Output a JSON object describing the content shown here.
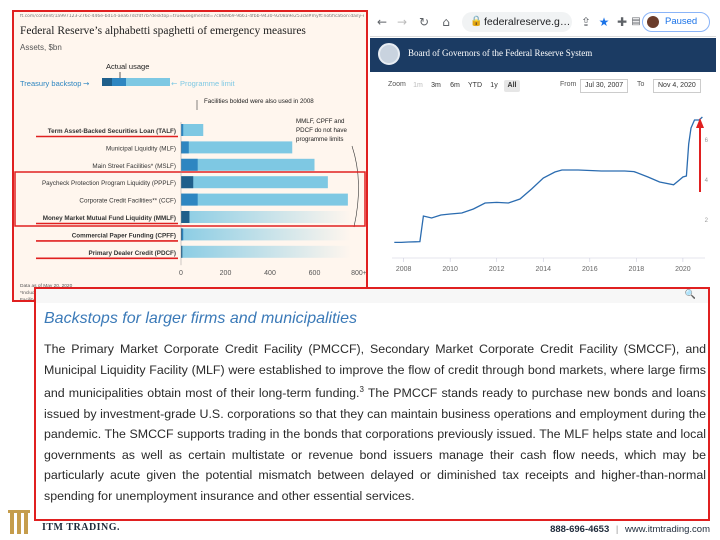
{
  "ft_chart": {
    "url": "ft.com/content/1a997123-276c-446e-bd14-aea67dcfdf7b?desktop=true&segmentId=7c8f89b9-9b61-4fbb-9430-9208a9e253c8#myft:notification:daily-email",
    "title": "Federal Reserve’s alphabetti spaghetti of emergency measures",
    "subtitle": "Assets, $bn",
    "legend": {
      "actual_usage": "Actual usage",
      "treasury_backstop": "Treasury backstop",
      "programme_limit": "Programme limit"
    },
    "annotations": {
      "bold_note": "Facilities bolded were also used in 2008",
      "limits_note_line1": "MMLF, CPFF and",
      "limits_note_line2": "PDCF do not have",
      "limits_note_line3": "programme limits"
    },
    "footnotes": [
      "Data as of May 20, 2020",
      "*Includes Main Street New Loan Facility (MSNLF), Main Street Priority Loan Facility (MSPLF) and Main Street Expanded Loan",
      "Facility (MSELF)",
      "**Includes Primary Market Corporate Credit Facility (PMCCF) and Secondary Market Corporate Credit Facility (SMCCF)",
      "Source: US Federal Reserve",
      "© FT"
    ]
  },
  "chart_data": [
    {
      "type": "bar",
      "title": "Federal Reserve’s alphabetti spaghetti of emergency measures",
      "subtitle": "Assets, $bn",
      "categories": [
        "Term Asset-Backed Securities Loan (TALF)",
        "Municipal Liquidity (MLF)",
        "Main Street Facilities* (MSLF)",
        "Paycheck Protection Program Liquidity (PPPLF)",
        "Corporate Credit Facilities** (CCF)",
        "Money Market Mutual Fund Liquidity (MMLF)",
        "Commercial Paper Funding (CPFF)",
        "Primary Dealer Credit (PDCF)"
      ],
      "bold_categories": [
        "Term Asset-Backed Securities Loan (TALF)",
        "Money Market Mutual Fund Liquidity (MMLF)",
        "Commercial Paper Funding (CPFF)",
        "Primary Dealer Credit (PDCF)"
      ],
      "series": [
        {
          "name": "Actual usage",
          "values": [
            0,
            2,
            0,
            55,
            0,
            38,
            5,
            6
          ]
        },
        {
          "name": "Treasury backstop",
          "values": [
            10,
            35,
            75,
            0,
            75,
            10,
            10,
            0
          ]
        },
        {
          "name": "Programme limit",
          "values": [
            100,
            500,
            600,
            660,
            750,
            0,
            0,
            0
          ]
        }
      ],
      "no_limit_categories": [
        "Money Market Mutual Fund Liquidity (MMLF)",
        "Commercial Paper Funding (CPFF)",
        "Primary Dealer Credit (PDCF)"
      ],
      "xticks": [
        "0",
        "200",
        "400",
        "600",
        "800+"
      ],
      "xlim": [
        0,
        800
      ],
      "colors": {
        "actual": "#1f5f8b",
        "backstop": "#2e86c1",
        "limit": "#7ec8e3",
        "background": "#fff6ee"
      }
    },
    {
      "type": "line",
      "title": "",
      "x": [
        2007.6,
        2007.9,
        2008.2,
        2008.5,
        2008.7,
        2008.85,
        2009.2,
        2009.6,
        2010.0,
        2010.5,
        2011.0,
        2011.5,
        2012.0,
        2012.5,
        2013.0,
        2013.5,
        2014.0,
        2014.5,
        2014.8,
        2015.5,
        2016.5,
        2017.5,
        2017.9,
        2018.5,
        2019.0,
        2019.6,
        2019.85,
        2020.0,
        2020.15,
        2020.25,
        2020.35,
        2020.5,
        2020.7,
        2020.84
      ],
      "y": [
        0.88,
        0.88,
        0.9,
        0.91,
        0.92,
        2.2,
        2.1,
        2.25,
        2.3,
        2.35,
        2.55,
        2.85,
        2.88,
        2.85,
        3.05,
        3.55,
        4.1,
        4.4,
        4.5,
        4.5,
        4.45,
        4.45,
        4.42,
        4.15,
        3.9,
        3.76,
        4.0,
        4.15,
        4.2,
        5.8,
        6.6,
        7.0,
        7.0,
        7.15
      ],
      "xticks": [
        "2008",
        "2010",
        "2012",
        "2014",
        "2016",
        "2018",
        "2020"
      ],
      "yticks": [
        "2",
        "4",
        "6"
      ],
      "xlim": [
        2007.5,
        2020.95
      ],
      "ylim": [
        0.3,
        7.7
      ],
      "grid": false,
      "line_color": "#2b6cb0"
    }
  ],
  "browser": {
    "url": "federalreserve.g…",
    "profile_status": "Paused",
    "icons": [
      "back-icon",
      "forward-icon",
      "reload-icon",
      "home-icon",
      "lock-icon",
      "share-icon",
      "bookmark-star-icon",
      "extensions-icon",
      "reading-list-icon"
    ]
  },
  "fed_page": {
    "title": "Board of Governors of the Federal Reserve System",
    "zoom_label": "Zoom",
    "zoom_options": [
      "1m",
      "3m",
      "6m",
      "YTD",
      "1y",
      "All"
    ],
    "zoom_active": "All",
    "zoom_disabled": "1m",
    "from_label": "From",
    "from_date": "Jul 30, 2007",
    "to_label": "To",
    "to_date": "Nov 4, 2020"
  },
  "document": {
    "heading": "Backstops for larger firms and municipalities",
    "body": "The Primary Market Corporate Credit Facility (PMCCF), Secondary Market Corporate Credit Facility (SMCCF), and Municipal Liquidity Facility (MLF) were established to improve the flow of credit through bond markets, where large firms and municipalities obtain most of their long-term funding.",
    "footnote_ref": "3",
    "body_cont": " The PMCCF stands ready to purchase new bonds and loans issued by investment-grade U.S. corporations so that they can maintain business operations and employment during the pandemic. The SMCCF supports trading in the bonds that corporations previously issued. The MLF helps state and local governments as well as certain multistate or revenue bond issuers manage their cash flow needs, which may be particularly acute given the potential mismatch between delayed or diminished tax receipts and higher-than-normal spending for unemployment insurance and other essential services."
  },
  "footer": {
    "brand_line1": "ITM",
    "brand_line2": "TRADING.",
    "phone": "888-696-4653",
    "separator": "|",
    "website": "www.itmtrading.com"
  },
  "colors": {
    "highlight": "#e02020",
    "fed_navy": "#1b3b63",
    "doc_heading": "#3b7ab8"
  }
}
